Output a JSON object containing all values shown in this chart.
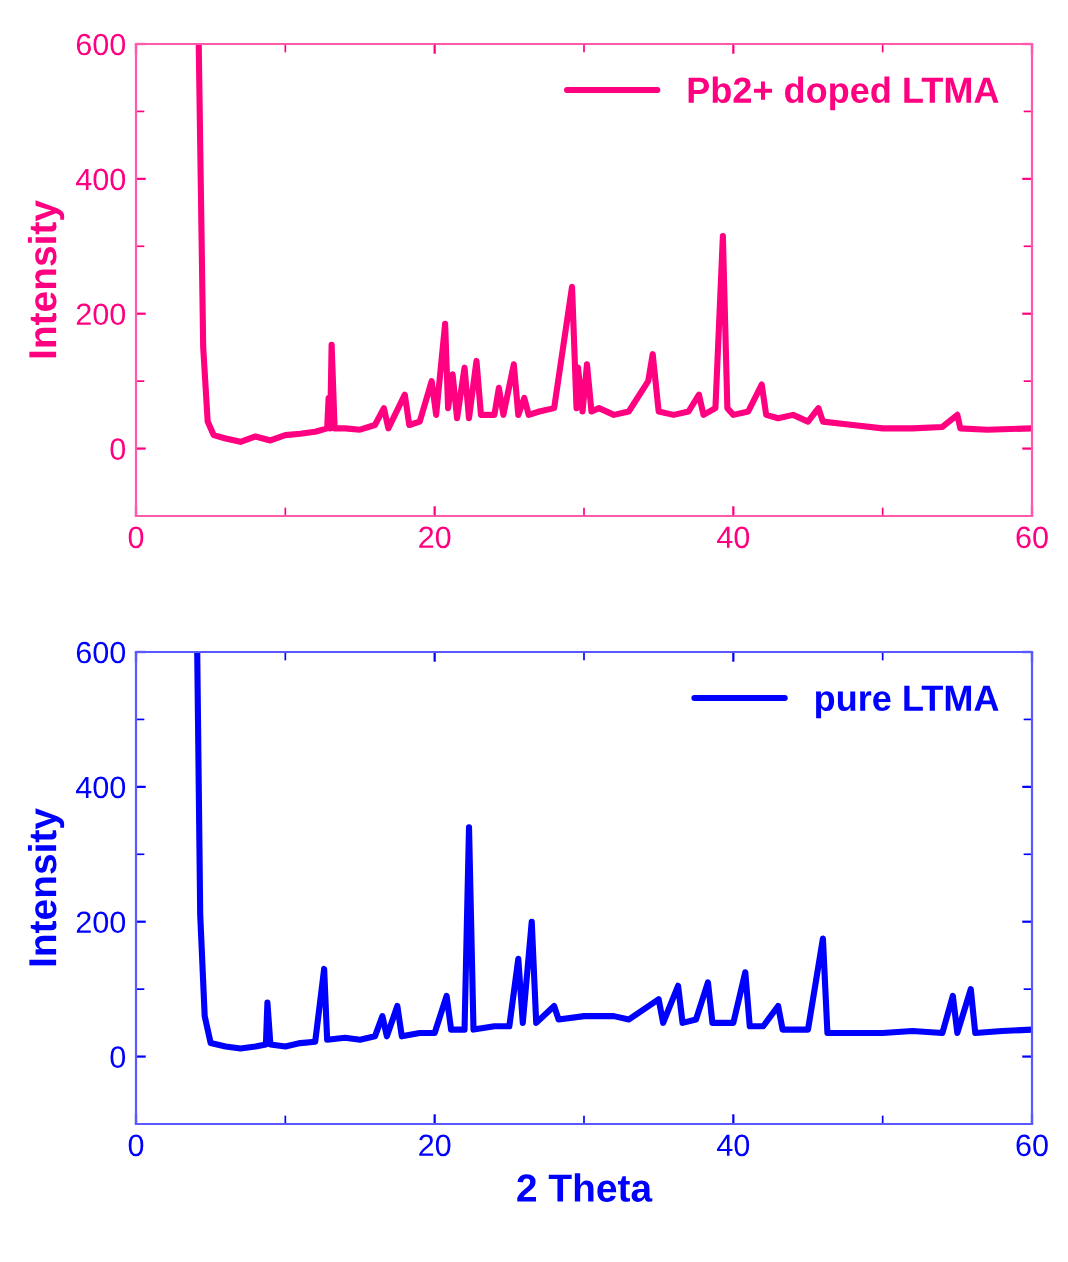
{
  "chart_data": [
    {
      "type": "line",
      "ylabel": "Intensity",
      "xlim": [
        0,
        60
      ],
      "xticks": [
        0,
        20,
        40,
        60
      ],
      "ylim": [
        -100,
        600
      ],
      "yticks": [
        0,
        200,
        400,
        600
      ],
      "legend": "top right",
      "grid": false,
      "series": [
        {
          "name": "Pb2+ doped LTMA",
          "color": "#ff0080",
          "x": [
            4.2,
            4.5,
            4.8,
            5.2,
            6,
            7,
            8,
            9,
            10,
            11,
            12,
            12.8,
            12.9,
            13.0,
            13.1,
            13.3,
            14,
            15,
            16,
            16.6,
            16.9,
            18,
            18.3,
            19,
            19.8,
            20.1,
            20.7,
            20.9,
            21.2,
            21.5,
            22,
            22.3,
            22.8,
            23.1,
            24,
            24.3,
            24.6,
            25.3,
            25.6,
            26,
            26.3,
            27,
            28,
            29.2,
            29.5,
            29.6,
            29.9,
            30.2,
            30.5,
            31,
            32,
            33,
            34.3,
            34.6,
            35,
            36,
            37,
            37.7,
            38,
            38.8,
            39.3,
            39.6,
            40,
            41,
            41.9,
            42.2,
            43,
            44,
            45,
            45.7,
            46,
            48,
            50,
            52,
            54,
            55,
            55.2,
            57,
            60
          ],
          "values": [
            600,
            150,
            40,
            20,
            15,
            10,
            18,
            12,
            20,
            22,
            25,
            30,
            75,
            30,
            154,
            30,
            30,
            28,
            35,
            60,
            30,
            80,
            35,
            40,
            100,
            50,
            185,
            60,
            110,
            45,
            120,
            45,
            130,
            50,
            50,
            90,
            50,
            125,
            50,
            75,
            50,
            55,
            60,
            240,
            60,
            120,
            55,
            125,
            55,
            60,
            50,
            55,
            100,
            140,
            55,
            50,
            55,
            80,
            50,
            60,
            315,
            60,
            50,
            55,
            95,
            50,
            45,
            50,
            40,
            60,
            40,
            35,
            30,
            30,
            32,
            50,
            30,
            28,
            30
          ]
        }
      ]
    },
    {
      "type": "line",
      "xlabel": "2 Theta",
      "ylabel": "Intensity",
      "xlim": [
        0,
        60
      ],
      "xticks": [
        0,
        20,
        40,
        60
      ],
      "ylim": [
        -100,
        600
      ],
      "yticks": [
        0,
        200,
        400,
        600
      ],
      "legend": "top right",
      "grid": false,
      "series": [
        {
          "name": "pure LTMA",
          "color": "#0000ff",
          "x": [
            4.1,
            4.3,
            4.6,
            5,
            6,
            7,
            8,
            8.7,
            8.8,
            9,
            10,
            11,
            12,
            12.6,
            12.8,
            14,
            15,
            16,
            16.5,
            16.8,
            17.5,
            17.8,
            19,
            20,
            20.8,
            21.1,
            22,
            22.3,
            22.6,
            24,
            25,
            25.6,
            25.9,
            26.5,
            26.8,
            28,
            28.3,
            30,
            32,
            33,
            35,
            35.3,
            36.3,
            36.6,
            37.5,
            38.3,
            38.6,
            40,
            40.8,
            41.1,
            42,
            43,
            43.3,
            45,
            46,
            46.3,
            48,
            50,
            52,
            54,
            54.7,
            55,
            55.9,
            56.2,
            58,
            60
          ],
          "values": [
            600,
            210,
            60,
            20,
            15,
            12,
            15,
            18,
            80,
            18,
            15,
            20,
            22,
            130,
            25,
            28,
            25,
            30,
            60,
            30,
            75,
            30,
            35,
            35,
            90,
            40,
            40,
            340,
            40,
            45,
            45,
            145,
            50,
            200,
            50,
            75,
            55,
            60,
            60,
            55,
            85,
            50,
            105,
            50,
            55,
            110,
            50,
            50,
            125,
            45,
            45,
            75,
            40,
            40,
            175,
            35,
            35,
            35,
            38,
            35,
            90,
            35,
            100,
            35,
            38,
            40
          ]
        }
      ]
    }
  ]
}
